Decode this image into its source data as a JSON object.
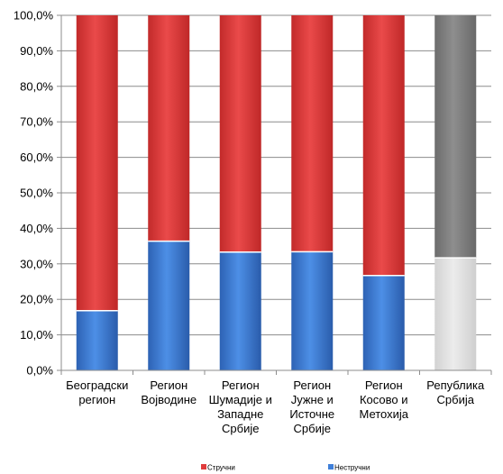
{
  "chart_data": {
    "type": "bar",
    "stacked": true,
    "categories": [
      [
        "Београдски",
        "регион"
      ],
      [
        "Регион",
        "Војводине"
      ],
      [
        "Регион",
        "Шумадије и",
        "Западне",
        "Србије"
      ],
      [
        "Регион",
        "Јужне и",
        "Источне",
        "Србије"
      ],
      [
        "Регион",
        "Косово и",
        "Метохија"
      ],
      [
        "Република",
        "Србија"
      ]
    ],
    "series": [
      {
        "name": "Нестручни",
        "values": [
          16.8,
          36.4,
          33.3,
          33.4,
          26.7,
          31.7
        ]
      },
      {
        "name": "Стручни",
        "values": [
          83.2,
          63.6,
          66.7,
          66.6,
          73.3,
          68.3
        ]
      }
    ],
    "highlight_category_index": 5,
    "colors": {
      "Нестручни": "#3f7fd8",
      "Стручни": "#e03c3c",
      "highlight_Нестручни": "#e6e6e6",
      "highlight_Стручни": "#808080",
      "grid": "#8c8c8c",
      "axis": "#8c8c8c"
    },
    "ylim": [
      0,
      100
    ],
    "yticks": [
      "0,0%",
      "10,0%",
      "20,0%",
      "30,0%",
      "40,0%",
      "50,0%",
      "60,0%",
      "70,0%",
      "80,0%",
      "90,0%",
      "100,0%"
    ],
    "grid": true,
    "legend": {
      "position": "bottom",
      "entries": [
        "Стручни",
        "Нестручни"
      ]
    }
  }
}
